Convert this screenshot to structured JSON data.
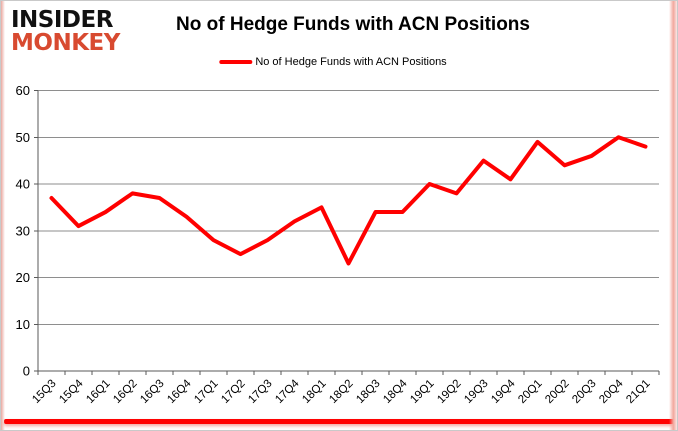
{
  "logo": {
    "line1": "INSIDER",
    "line2": "MONKEY",
    "brand_color": "#d84a30",
    "text_color": "#111111"
  },
  "chart_data": {
    "type": "line",
    "title": "No of Hedge Funds with ACN Positions",
    "legend": [
      {
        "label": "No of Hedge Funds with ACN Positions",
        "color": "#ff0000"
      }
    ],
    "legend_position": "top-center",
    "categories": [
      "15Q3",
      "15Q4",
      "16Q1",
      "16Q2",
      "16Q3",
      "16Q4",
      "17Q1",
      "17Q2",
      "17Q3",
      "17Q4",
      "18Q1",
      "18Q2",
      "18Q3",
      "18Q4",
      "19Q1",
      "19Q2",
      "19Q3",
      "19Q4",
      "20Q1",
      "20Q2",
      "20Q3",
      "20Q4",
      "21Q1"
    ],
    "values": [
      37,
      31,
      34,
      38,
      37,
      33,
      28,
      25,
      28,
      32,
      35,
      23,
      34,
      34,
      40,
      38,
      45,
      41,
      49,
      44,
      46,
      50,
      48
    ],
    "ylim": [
      0,
      60
    ],
    "ytick_step": 10,
    "yticks": [
      0,
      10,
      20,
      30,
      40,
      50,
      60
    ],
    "grid": true,
    "line_color": "#ff0000",
    "gridline_color": "#8e8e8e",
    "axis_color": "#595959",
    "accent_bar_color": "#ff0202"
  }
}
